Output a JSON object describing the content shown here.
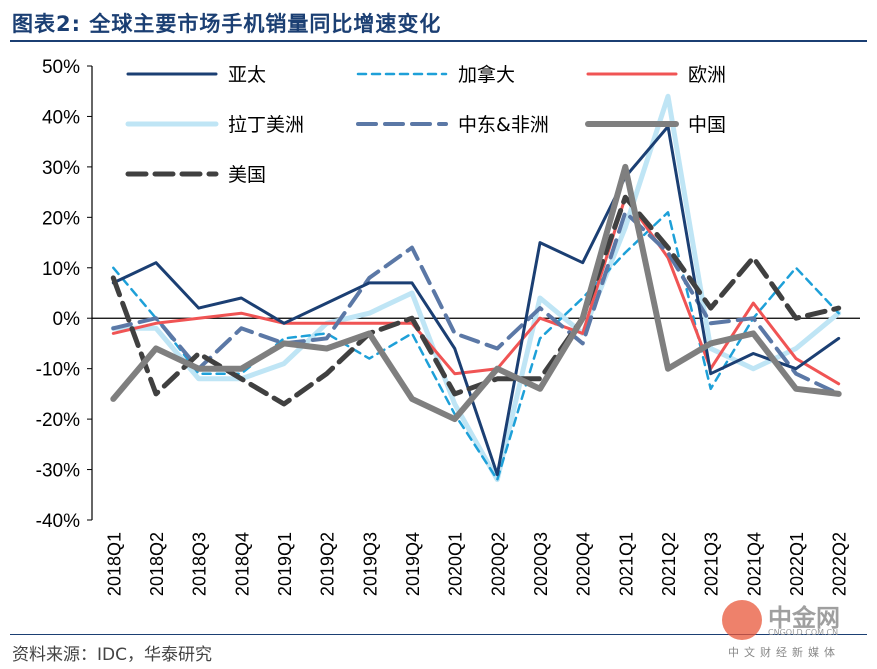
{
  "header": {
    "title": "图表2:  全球主要市场手机销量同比增速变化"
  },
  "footer": {
    "source": "资料来源：IDC，华泰研究"
  },
  "watermark": {
    "name": "中金网",
    "url": "CNGOLD.COM.CN",
    "sub": "中文财经新媒体"
  },
  "chart_data": {
    "type": "line",
    "title": "",
    "xlabel": "",
    "ylabel": "",
    "ylim": [
      -0.4,
      0.5
    ],
    "yticks": [
      "-40%",
      "-30%",
      "-20%",
      "-10%",
      "0%",
      "10%",
      "20%",
      "30%",
      "40%",
      "50%"
    ],
    "grid": false,
    "legend_position": "top-left",
    "categories": [
      "2018Q1",
      "2018Q2",
      "2018Q3",
      "2018Q4",
      "2019Q1",
      "2019Q2",
      "2019Q3",
      "2019Q4",
      "2020Q1",
      "2020Q2",
      "2020Q3",
      "2020Q4",
      "2021Q1",
      "2021Q2",
      "2021Q3",
      "2021Q4",
      "2022Q1",
      "2022Q2"
    ],
    "series": [
      {
        "name": "亚太",
        "color": "#1b3f73",
        "dash": "solid",
        "width": 3,
        "values": [
          0.07,
          0.11,
          0.02,
          0.04,
          -0.01,
          0.03,
          0.07,
          0.07,
          -0.06,
          -0.31,
          0.15,
          0.11,
          0.28,
          0.38,
          -0.11,
          -0.07,
          -0.1,
          -0.04
        ]
      },
      {
        "name": "加拿大",
        "color": "#1ea0d8",
        "dash": "short",
        "width": 2.5,
        "values": [
          0.1,
          0.0,
          -0.11,
          -0.11,
          -0.04,
          -0.03,
          -0.08,
          -0.03,
          -0.19,
          -0.32,
          -0.04,
          0.04,
          0.13,
          0.21,
          -0.14,
          0.0,
          0.1,
          0.01
        ]
      },
      {
        "name": "欧洲",
        "color": "#f05454",
        "dash": "solid",
        "width": 3,
        "values": [
          -0.03,
          -0.01,
          0.0,
          0.01,
          -0.01,
          -0.01,
          -0.01,
          -0.01,
          -0.11,
          -0.1,
          0.0,
          -0.03,
          0.24,
          0.12,
          -0.1,
          0.03,
          -0.08,
          -0.13
        ]
      },
      {
        "name": "拉丁美洲",
        "color": "#bfe5f5",
        "dash": "solid",
        "width": 5,
        "values": [
          -0.02,
          -0.02,
          -0.12,
          -0.12,
          -0.09,
          -0.01,
          0.01,
          0.05,
          -0.17,
          -0.32,
          0.04,
          -0.03,
          0.18,
          0.44,
          -0.06,
          -0.1,
          -0.06,
          0.01
        ]
      },
      {
        "name": "中东&非洲",
        "color": "#5b78a6",
        "dash": "long",
        "width": 4,
        "values": [
          -0.02,
          0.0,
          -0.1,
          -0.02,
          -0.05,
          -0.04,
          0.08,
          0.14,
          -0.03,
          -0.06,
          0.02,
          -0.05,
          0.21,
          0.13,
          -0.01,
          0.0,
          -0.11,
          -0.15
        ]
      },
      {
        "name": "中国",
        "color": "#7f7f7f",
        "dash": "solid",
        "width": 6,
        "values": [
          -0.16,
          -0.06,
          -0.1,
          -0.1,
          -0.05,
          -0.06,
          -0.03,
          -0.16,
          -0.2,
          -0.1,
          -0.14,
          0.0,
          0.3,
          -0.1,
          -0.05,
          -0.03,
          -0.14,
          -0.15
        ]
      },
      {
        "name": "美国",
        "color": "#404040",
        "dash": "long",
        "width": 5,
        "values": [
          0.08,
          -0.15,
          -0.07,
          -0.12,
          -0.17,
          -0.11,
          -0.03,
          0.0,
          -0.15,
          -0.12,
          -0.12,
          0.0,
          0.24,
          0.14,
          0.02,
          0.12,
          0.0,
          0.02
        ]
      }
    ]
  }
}
